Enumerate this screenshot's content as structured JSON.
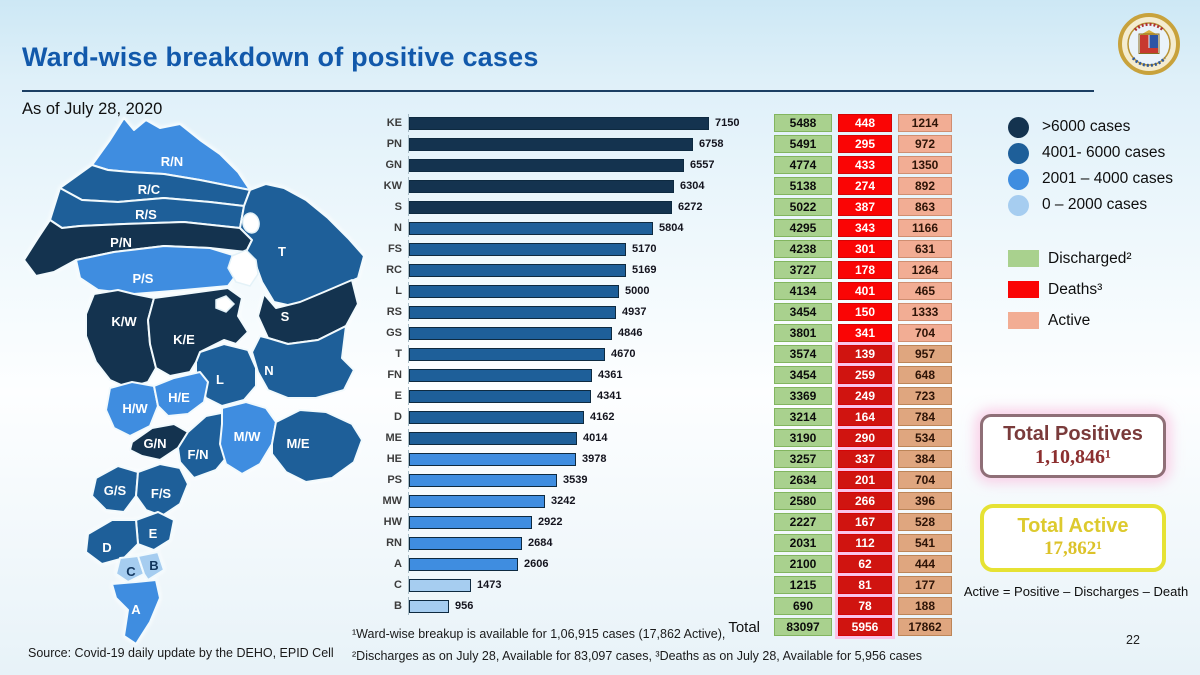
{
  "header": {
    "title": "Ward-wise breakdown of positive cases",
    "date": "As of July 28, 2020",
    "logo": "bmc-municipal-corporation-seal"
  },
  "chart_data": {
    "type": "bar",
    "orientation": "horizontal",
    "categories": [
      "KE",
      "PN",
      "GN",
      "KW",
      "S",
      "N",
      "FS",
      "RC",
      "L",
      "RS",
      "GS",
      "T",
      "FN",
      "E",
      "D",
      "ME",
      "HE",
      "PS",
      "MW",
      "HW",
      "RN",
      "A",
      "C",
      "B"
    ],
    "series": [
      {
        "name": "Positive",
        "values": [
          7150,
          6758,
          6557,
          6304,
          6272,
          5804,
          5170,
          5169,
          5000,
          4937,
          4846,
          4670,
          4361,
          4341,
          4162,
          4014,
          3978,
          3539,
          3242,
          2922,
          2684,
          2606,
          1473,
          956
        ]
      },
      {
        "name": "Discharged",
        "values": [
          5488,
          5491,
          4774,
          5138,
          5022,
          4295,
          4238,
          3727,
          4134,
          3454,
          3801,
          3574,
          3454,
          3369,
          3214,
          3190,
          3257,
          2634,
          2580,
          2227,
          2031,
          2100,
          1215,
          690
        ]
      },
      {
        "name": "Deaths",
        "values": [
          448,
          295,
          433,
          274,
          387,
          343,
          301,
          178,
          401,
          150,
          341,
          139,
          259,
          249,
          164,
          290,
          337,
          201,
          266,
          167,
          112,
          62,
          81,
          78
        ]
      },
      {
        "name": "Active",
        "values": [
          1214,
          972,
          1350,
          892,
          863,
          1166,
          631,
          1264,
          465,
          1333,
          704,
          957,
          648,
          723,
          784,
          534,
          384,
          704,
          396,
          528,
          541,
          444,
          177,
          188
        ]
      }
    ],
    "total_row": {
      "label": "Total",
      "discharged": "83097",
      "deaths": "5956",
      "active": "17862"
    },
    "xlim": [
      0,
      7150
    ],
    "legend_position": "right",
    "bands": [
      {
        "label": ">6000 cases",
        "min": 6001,
        "color": "#14334f"
      },
      {
        "label": "4001- 6000 cases",
        "min": 4001,
        "color": "#1e5f99"
      },
      {
        "label": "2001 – 4000 cases",
        "min": 2001,
        "color": "#3f8de0"
      },
      {
        "label": "0 – 2000 cases",
        "min": 0,
        "color": "#a6cdf0"
      }
    ],
    "status_legend": [
      {
        "label": "Discharged²",
        "color": "#a9d18e"
      },
      {
        "label": "Deaths³",
        "color": "#fa0505"
      },
      {
        "label": "Active",
        "color": "#f2ad94"
      }
    ]
  },
  "map": {
    "wards": [
      {
        "code": "R/N"
      },
      {
        "code": "R/C"
      },
      {
        "code": "R/S"
      },
      {
        "code": "P/N"
      },
      {
        "code": "P/S"
      },
      {
        "code": "T"
      },
      {
        "code": "S"
      },
      {
        "code": "N"
      },
      {
        "code": "L"
      },
      {
        "code": "K/W"
      },
      {
        "code": "K/E"
      },
      {
        "code": "H/W"
      },
      {
        "code": "H/E"
      },
      {
        "code": "G/N"
      },
      {
        "code": "F/N"
      },
      {
        "code": "M/W"
      },
      {
        "code": "M/E"
      },
      {
        "code": "G/S"
      },
      {
        "code": "F/S"
      },
      {
        "code": "E"
      },
      {
        "code": "D"
      },
      {
        "code": "C"
      },
      {
        "code": "B"
      },
      {
        "code": "A"
      }
    ]
  },
  "summary": {
    "positives_title": "Total Positives",
    "positives_value": "1,10,846¹",
    "active_title": "Total Active",
    "active_value": "17,862¹",
    "formula": "Active = Positive – Discharges – Death"
  },
  "footer": {
    "source": "Source: Covid-19 daily update by the DEHO, EPID Cell",
    "note1": "¹Ward-wise breakup is available for 1,06,915 cases (17,862 Active),",
    "note2": "²Discharges as on July 28, Available for 83,097 cases, ³Deaths as on July 28, Available for 5,956 cases",
    "page_number": "22"
  }
}
